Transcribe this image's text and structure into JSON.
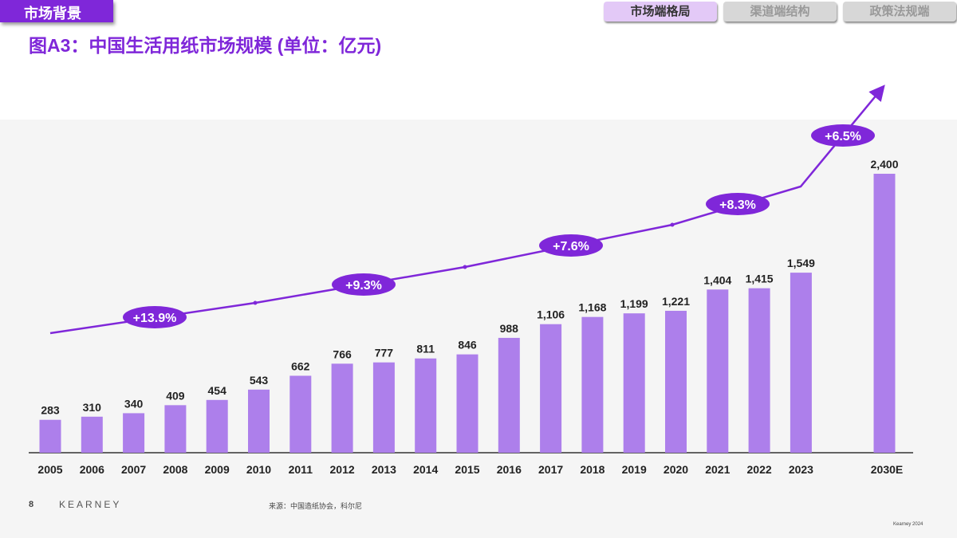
{
  "header": {
    "section": "市场背景",
    "title": "图A3：中国生活用纸市场规模 (单位：亿元)"
  },
  "tabs": [
    {
      "label": "市场端格局",
      "active": true
    },
    {
      "label": "渠道端结构",
      "active": false
    },
    {
      "label": "政策法规端",
      "active": false
    }
  ],
  "chart_data": {
    "type": "bar",
    "title": "图A3：中国生活用纸市场规模 (单位：亿元)",
    "categories": [
      "2005",
      "2006",
      "2007",
      "2008",
      "2009",
      "2010",
      "2011",
      "2012",
      "2013",
      "2014",
      "2015",
      "2016",
      "2017",
      "2018",
      "2019",
      "2020",
      "2021",
      "2022",
      "2023",
      "2030E"
    ],
    "values": [
      283,
      310,
      340,
      409,
      454,
      543,
      662,
      766,
      777,
      811,
      846,
      988,
      1106,
      1168,
      1199,
      1221,
      1404,
      1415,
      1549,
      2400
    ],
    "labels": [
      "283",
      "310",
      "340",
      "409",
      "454",
      "543",
      "662",
      "766",
      "777",
      "811",
      "846",
      "988",
      "1,106",
      "1,168",
      "1,199",
      "1,221",
      "1,404",
      "1,415",
      "1,549",
      "2,400"
    ],
    "cagr_annotations": [
      {
        "period": "2005-2010",
        "label": "+13.9%"
      },
      {
        "period": "2010-2015",
        "label": "+9.3%"
      },
      {
        "period": "2015-2020",
        "label": "+7.6%"
      },
      {
        "period": "2020-2023",
        "label": "+8.3%"
      },
      {
        "period": "2023-2030E",
        "label": "+6.5%"
      }
    ],
    "bar_color": "#ad7feb",
    "accent_color": "#7f27d9",
    "ylim": [
      0,
      2400
    ],
    "grid": false
  },
  "footer": {
    "page": "8",
    "brand": "KEARNEY",
    "source": "来源：中国造纸协会，科尔尼",
    "copyright": "Kearney 2024"
  }
}
